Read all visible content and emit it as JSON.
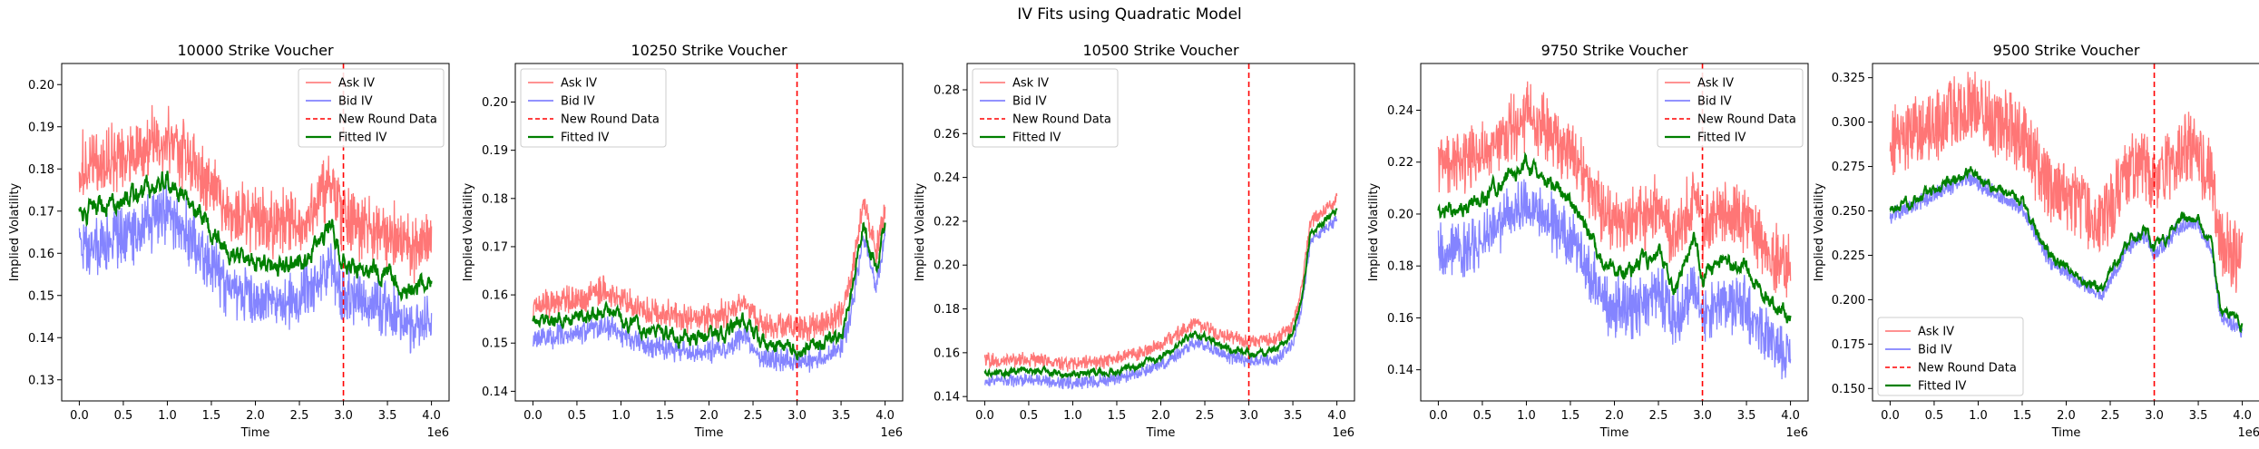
{
  "figure": {
    "suptitle": "IV Fits using Quadratic Model",
    "colors": {
      "ask": "#ff6f6f",
      "bid": "#6f6fff",
      "overlap": "#7f3fc0",
      "fit": "#008000",
      "vline": "#ff0000"
    }
  },
  "chart_data": [
    {
      "type": "line",
      "title": "10000 Strike Voucher",
      "xlabel": "Time",
      "ylabel": "Implied Volatility",
      "x_offset_label": "1e6",
      "xlim": [
        -0.2,
        4.2
      ],
      "ylim": [
        0.125,
        0.205
      ],
      "xticks": [
        0.0,
        0.5,
        1.0,
        1.5,
        2.0,
        2.5,
        3.0,
        3.5,
        4.0
      ],
      "yticks": [
        0.13,
        0.14,
        0.15,
        0.16,
        0.17,
        0.18,
        0.19,
        0.2
      ],
      "ytick_decimals": 2,
      "vline_x": 3.0,
      "legend_position": "upper-right",
      "legend": [
        "Ask IV",
        "Bid IV",
        "New Round Data",
        "Fitted IV"
      ],
      "fit_knots": [
        [
          0.0,
          0.17
        ],
        [
          0.5,
          0.172
        ],
        [
          1.0,
          0.178
        ],
        [
          1.3,
          0.171
        ],
        [
          1.7,
          0.16
        ],
        [
          2.0,
          0.158
        ],
        [
          2.5,
          0.157
        ],
        [
          2.85,
          0.166
        ],
        [
          3.0,
          0.158
        ],
        [
          3.5,
          0.155
        ],
        [
          3.8,
          0.151
        ],
        [
          4.0,
          0.153
        ]
      ],
      "ask_offset": 0.01,
      "bid_offset": 0.008,
      "band_noise": 0.009,
      "fit_noise": 0.003
    },
    {
      "type": "line",
      "title": "10250 Strike Voucher",
      "xlabel": "Time",
      "ylabel": "Implied Volatility",
      "x_offset_label": "1e6",
      "xlim": [
        -0.2,
        4.2
      ],
      "ylim": [
        0.138,
        0.208
      ],
      "xticks": [
        0.0,
        0.5,
        1.0,
        1.5,
        2.0,
        2.5,
        3.0,
        3.5,
        4.0
      ],
      "yticks": [
        0.14,
        0.15,
        0.16,
        0.17,
        0.18,
        0.19,
        0.2
      ],
      "ytick_decimals": 2,
      "vline_x": 3.0,
      "legend_position": "upper-left",
      "legend": [
        "Ask IV",
        "Bid IV",
        "New Round Data",
        "Fitted IV"
      ],
      "fit_knots": [
        [
          0.0,
          0.154
        ],
        [
          0.5,
          0.155
        ],
        [
          0.8,
          0.157
        ],
        [
          1.2,
          0.153
        ],
        [
          1.8,
          0.151
        ],
        [
          2.2,
          0.152
        ],
        [
          2.4,
          0.155
        ],
        [
          2.6,
          0.15
        ],
        [
          3.0,
          0.149
        ],
        [
          3.3,
          0.15
        ],
        [
          3.5,
          0.152
        ],
        [
          3.6,
          0.158
        ],
        [
          3.75,
          0.175
        ],
        [
          3.9,
          0.165
        ],
        [
          4.0,
          0.175
        ]
      ],
      "ask_offset": 0.004,
      "bid_offset": 0.003,
      "band_noise": 0.003,
      "fit_noise": 0.002
    },
    {
      "type": "line",
      "title": "10500 Strike Voucher",
      "xlabel": "Time",
      "ylabel": "Implied Volatility",
      "x_offset_label": "1e6",
      "xlim": [
        -0.2,
        4.2
      ],
      "ylim": [
        0.138,
        0.292
      ],
      "xticks": [
        0.0,
        0.5,
        1.0,
        1.5,
        2.0,
        2.5,
        3.0,
        3.5,
        4.0
      ],
      "yticks": [
        0.14,
        0.16,
        0.18,
        0.2,
        0.22,
        0.24,
        0.26,
        0.28
      ],
      "ytick_decimals": 2,
      "vline_x": 3.0,
      "legend_position": "upper-left",
      "legend": [
        "Ask IV",
        "Bid IV",
        "New Round Data",
        "Fitted IV"
      ],
      "fit_knots": [
        [
          0.0,
          0.151
        ],
        [
          0.5,
          0.152
        ],
        [
          1.0,
          0.15
        ],
        [
          1.5,
          0.152
        ],
        [
          2.0,
          0.158
        ],
        [
          2.4,
          0.169
        ],
        [
          2.7,
          0.163
        ],
        [
          3.0,
          0.16
        ],
        [
          3.3,
          0.161
        ],
        [
          3.5,
          0.168
        ],
        [
          3.6,
          0.185
        ],
        [
          3.7,
          0.215
        ],
        [
          3.85,
          0.22
        ],
        [
          4.0,
          0.225
        ]
      ],
      "ask_offset": 0.005,
      "bid_offset": 0.004,
      "band_noise": 0.003,
      "fit_noise": 0.002
    },
    {
      "type": "line",
      "title": "9750 Strike Voucher",
      "xlabel": "Time",
      "ylabel": "Implied Volatility",
      "x_offset_label": "1e6",
      "xlim": [
        -0.2,
        4.2
      ],
      "ylim": [
        0.128,
        0.258
      ],
      "xticks": [
        0.0,
        0.5,
        1.0,
        1.5,
        2.0,
        2.5,
        3.0,
        3.5,
        4.0
      ],
      "yticks": [
        0.14,
        0.16,
        0.18,
        0.2,
        0.22,
        0.24
      ],
      "ytick_decimals": 2,
      "vline_x": 3.0,
      "legend_position": "upper-right",
      "legend": [
        "Ask IV",
        "Bid IV",
        "New Round Data",
        "Fitted IV"
      ],
      "fit_knots": [
        [
          0.0,
          0.2
        ],
        [
          0.5,
          0.205
        ],
        [
          1.0,
          0.22
        ],
        [
          1.3,
          0.212
        ],
        [
          1.6,
          0.2
        ],
        [
          1.9,
          0.18
        ],
        [
          2.2,
          0.178
        ],
        [
          2.5,
          0.185
        ],
        [
          2.7,
          0.172
        ],
        [
          2.9,
          0.19
        ],
        [
          3.0,
          0.175
        ],
        [
          3.2,
          0.182
        ],
        [
          3.5,
          0.18
        ],
        [
          3.7,
          0.168
        ],
        [
          4.0,
          0.16
        ]
      ],
      "ask_offset": 0.018,
      "bid_offset": 0.015,
      "band_noise": 0.012,
      "fit_noise": 0.004
    },
    {
      "type": "line",
      "title": "9500 Strike Voucher",
      "xlabel": "Time",
      "ylabel": "Implied Volatility",
      "x_offset_label": "1e6",
      "xlim": [
        -0.2,
        4.2
      ],
      "ylim": [
        0.143,
        0.333
      ],
      "xticks": [
        0.0,
        0.5,
        1.0,
        1.5,
        2.0,
        2.5,
        3.0,
        3.5,
        4.0
      ],
      "yticks": [
        0.15,
        0.175,
        0.2,
        0.225,
        0.25,
        0.275,
        0.3,
        0.325
      ],
      "ytick_decimals": 3,
      "vline_x": 3.0,
      "legend_position": "lower-left",
      "legend": [
        "Ask IV",
        "Bid IV",
        "New Round Data",
        "Fitted IV"
      ],
      "fit_knots": [
        [
          0.0,
          0.25
        ],
        [
          0.5,
          0.262
        ],
        [
          0.9,
          0.272
        ],
        [
          1.2,
          0.262
        ],
        [
          1.5,
          0.255
        ],
        [
          1.8,
          0.225
        ],
        [
          2.1,
          0.215
        ],
        [
          2.4,
          0.205
        ],
        [
          2.7,
          0.232
        ],
        [
          2.9,
          0.24
        ],
        [
          3.0,
          0.228
        ],
        [
          3.3,
          0.245
        ],
        [
          3.5,
          0.245
        ],
        [
          3.65,
          0.23
        ],
        [
          3.75,
          0.195
        ],
        [
          4.0,
          0.185
        ]
      ],
      "ask_offset": 0.038,
      "bid_offset": 0.003,
      "band_noise": 0.008,
      "fit_noise": 0.004
    }
  ]
}
